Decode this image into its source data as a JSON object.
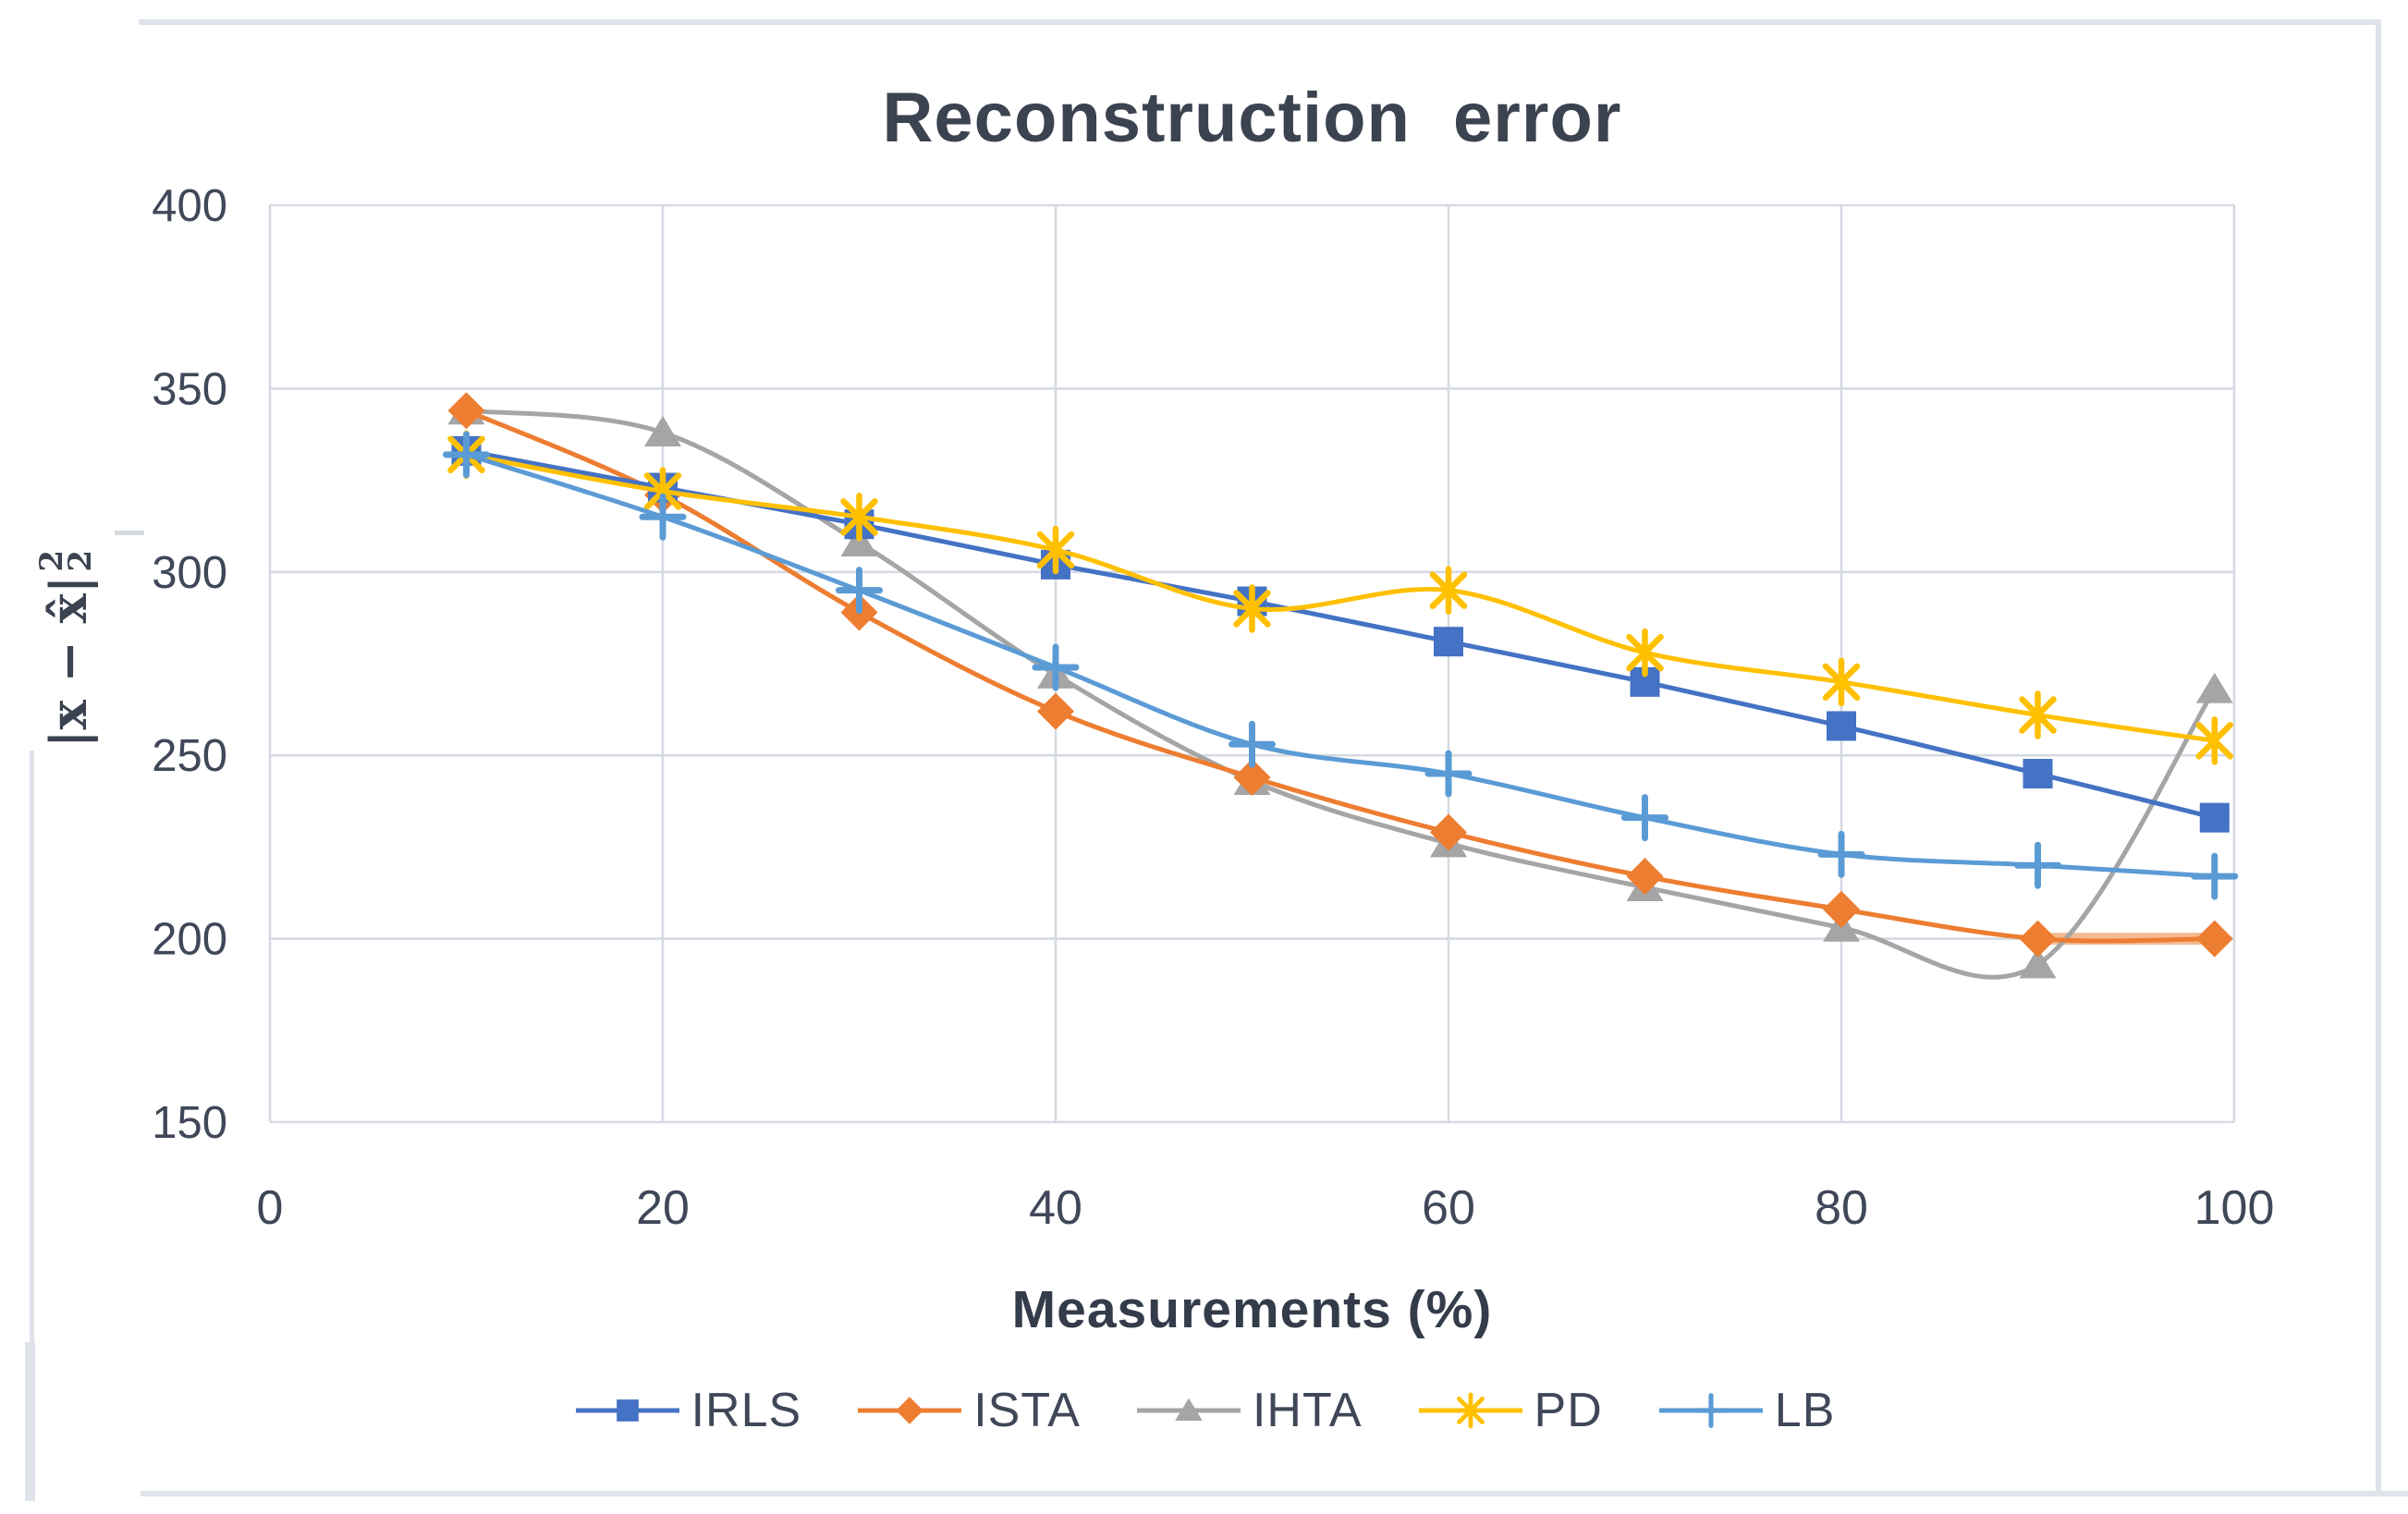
{
  "figure": {
    "title": "Reconstruction error",
    "x_axis_title": "Measurements (%)",
    "y_axis_label_core": "|x − x̂|",
    "y_axis_label_sup": "2",
    "y_axis_label_sub": "2"
  },
  "chart_data": {
    "type": "line",
    "title": "Reconstruction error",
    "xlabel": "Measurements (%)",
    "ylabel": "|x − x̂|₂²",
    "smooth": true,
    "grid": true,
    "legend_position": "bottom",
    "xlim": [
      0,
      100
    ],
    "ylim": [
      150,
      400
    ],
    "x_ticks": [
      0,
      20,
      40,
      60,
      80,
      100
    ],
    "y_ticks": [
      400,
      350,
      300,
      250,
      200,
      150
    ],
    "x": [
      10,
      20,
      30,
      40,
      50,
      60,
      70,
      80,
      90,
      99
    ],
    "series": [
      {
        "name": "IRLS",
        "color": "#4472C4",
        "marker": "square",
        "values": [
          333,
          323,
          313,
          302,
          292,
          281,
          270,
          258,
          245,
          233
        ]
      },
      {
        "name": "ISTA",
        "color": "#ED7D31",
        "marker": "diamond",
        "values": [
          344,
          321,
          289,
          262,
          244,
          229,
          217,
          208,
          200,
          200
        ]
      },
      {
        "name": "IHTA",
        "color": "#A5A5A5",
        "marker": "triangle",
        "values": [
          344,
          338,
          308,
          272,
          243,
          226,
          214,
          203,
          193,
          268
        ]
      },
      {
        "name": "PD",
        "color": "#FFC000",
        "marker": "star",
        "values": [
          332,
          322,
          315,
          306,
          290,
          295,
          278,
          270,
          261,
          254
        ]
      },
      {
        "name": "LB",
        "color": "#5B9BD5",
        "marker": "plus",
        "values": [
          332,
          315,
          295,
          274,
          253,
          245,
          233,
          223,
          220,
          217
        ]
      }
    ]
  },
  "style": {
    "grid_color": "#d5dae2",
    "tick_color": "#3f4758",
    "ista_trail_highlight": "#f3bb92"
  }
}
